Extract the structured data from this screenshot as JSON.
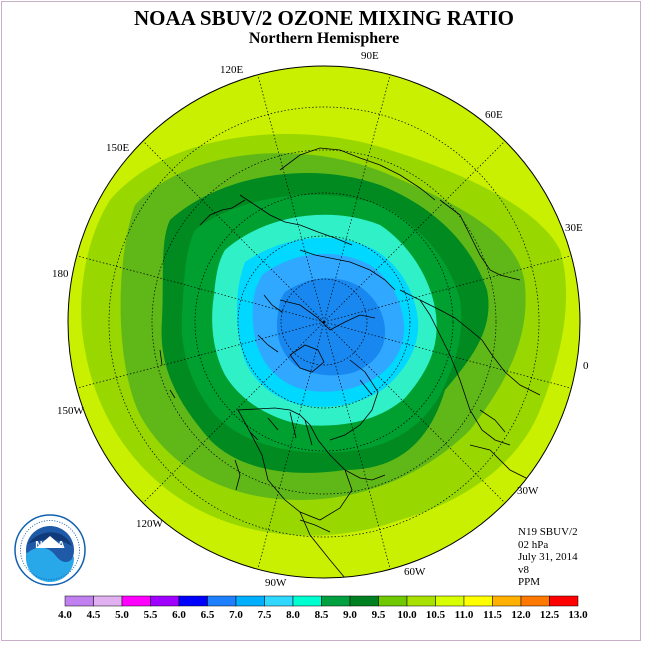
{
  "title": "NOAA SBUV/2 OZONE MIXING RATIO",
  "subtitle": "Northern Hemisphere",
  "longitude_labels": {
    "lon_90e": "90E",
    "lon_120e": "120E",
    "lon_60e": "60E",
    "lon_150e": "150E",
    "lon_30e": "30E",
    "lon_180": "180",
    "lon_0": "0",
    "lon_150w": "150W",
    "lon_30w": "30W",
    "lon_120w": "120W",
    "lon_60w": "60W",
    "lon_90w": "90W"
  },
  "info": {
    "satellite": "N19 SBUV/2",
    "level": "02 hPa",
    "date": "July 31, 2014",
    "version": "v8",
    "units": "PPM"
  },
  "logo": {
    "text": "NOAA",
    "ring_text": "NATIONAL OCEANIC AND ATMOSPHERIC ADMINISTRATION · U.S. DEPARTMENT OF COMMERCE"
  },
  "colorbar": {
    "ticks": [
      "4.0",
      "4.5",
      "5.0",
      "5.5",
      "6.0",
      "6.5",
      "7.0",
      "7.5",
      "8.0",
      "8.5",
      "9.0",
      "9.5",
      "10.0",
      "10.5",
      "11.0",
      "11.5",
      "12.0",
      "12.5",
      "13.0"
    ],
    "colors": [
      "#c080f0",
      "#e0b0f0",
      "#ff00ff",
      "#a000ff",
      "#0000ff",
      "#1e80ff",
      "#00b0ff",
      "#30d8ff",
      "#00ffd0",
      "#00a040",
      "#008020",
      "#70c800",
      "#a8e000",
      "#d8ff00",
      "#ffff00",
      "#ffb000",
      "#ff7800",
      "#ff0000",
      "#9a5030"
    ]
  },
  "map_colors": {
    "outer": "#c8f000",
    "c95": "#98d800",
    "c90": "#60b818",
    "c85": "#008a20",
    "c80": "#00a030",
    "c75": "#30f0c8",
    "c70": "#00d8ff",
    "c65": "#30a8ff",
    "c60": "#1888f0"
  }
}
